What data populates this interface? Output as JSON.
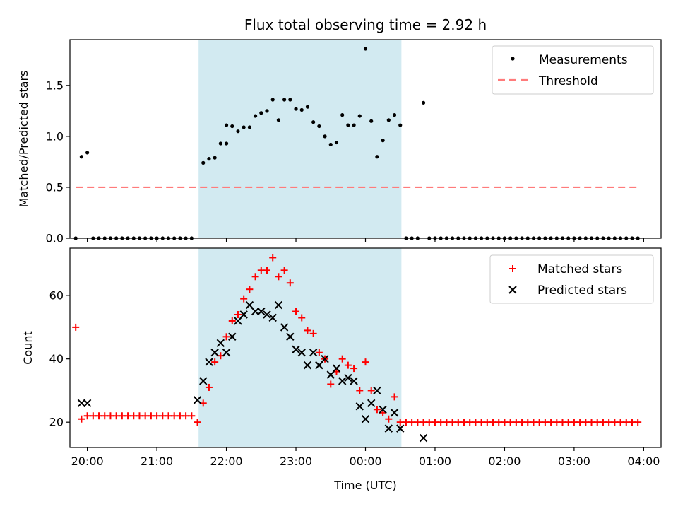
{
  "chart_data": [
    {
      "type": "scatter",
      "title": "Flux total observing time = 2.92 h",
      "xlabel": "",
      "ylabel": "Matched/Predicted stars",
      "xlim": [
        "19:45",
        "04:15"
      ],
      "ylim": [
        0,
        1.95
      ],
      "yticks": [
        {
          "value": 0.0,
          "label": "0.0"
        },
        {
          "value": 0.5,
          "label": "0.5"
        },
        {
          "value": 1.0,
          "label": "1.0"
        },
        {
          "value": 1.5,
          "label": "1.5"
        }
      ],
      "highlight_span": {
        "start": "21:36",
        "end": "00:31",
        "color": "#add8e6"
      },
      "legend": {
        "placement": "top-right",
        "entries": [
          {
            "label": "Measurements",
            "marker": "dot",
            "color": "#000000"
          },
          {
            "label": "Threshold",
            "marker": "dashed-line",
            "color": "#ff7b7b"
          }
        ]
      },
      "threshold": {
        "value": 0.5,
        "from": "19:50",
        "to": "03:55",
        "color": "#ff7b7b"
      },
      "series": [
        {
          "name": "Measurements",
          "color": "#000000",
          "points": [
            [
              "19:50",
              0.0
            ],
            [
              "19:55",
              0.8
            ],
            [
              "20:00",
              0.84
            ],
            [
              "20:05",
              0.0
            ],
            [
              "20:10",
              0.0
            ],
            [
              "20:15",
              0.0
            ],
            [
              "20:20",
              0.0
            ],
            [
              "20:25",
              0.0
            ],
            [
              "20:30",
              0.0
            ],
            [
              "20:35",
              0.0
            ],
            [
              "20:40",
              0.0
            ],
            [
              "20:45",
              0.0
            ],
            [
              "20:50",
              0.0
            ],
            [
              "20:55",
              0.0
            ],
            [
              "21:00",
              0.0
            ],
            [
              "21:05",
              0.0
            ],
            [
              "21:10",
              0.0
            ],
            [
              "21:15",
              0.0
            ],
            [
              "21:20",
              0.0
            ],
            [
              "21:25",
              0.0
            ],
            [
              "21:30",
              0.0
            ],
            [
              "21:40",
              0.74
            ],
            [
              "21:45",
              0.78
            ],
            [
              "21:50",
              0.79
            ],
            [
              "21:55",
              0.93
            ],
            [
              "22:00",
              0.93
            ],
            [
              "22:00",
              1.11
            ],
            [
              "22:05",
              1.1
            ],
            [
              "22:10",
              1.05
            ],
            [
              "22:15",
              1.09
            ],
            [
              "22:20",
              1.09
            ],
            [
              "22:25",
              1.2
            ],
            [
              "22:30",
              1.23
            ],
            [
              "22:35",
              1.25
            ],
            [
              "22:40",
              1.36
            ],
            [
              "22:45",
              1.16
            ],
            [
              "22:50",
              1.36
            ],
            [
              "22:55",
              1.36
            ],
            [
              "23:00",
              1.27
            ],
            [
              "23:05",
              1.26
            ],
            [
              "23:10",
              1.29
            ],
            [
              "23:15",
              1.14
            ],
            [
              "23:20",
              1.1
            ],
            [
              "23:25",
              1.0
            ],
            [
              "23:30",
              0.92
            ],
            [
              "23:35",
              0.94
            ],
            [
              "23:40",
              1.21
            ],
            [
              "23:45",
              1.11
            ],
            [
              "23:50",
              1.11
            ],
            [
              "23:55",
              1.2
            ],
            [
              "00:00",
              1.86
            ],
            [
              "00:05",
              1.15
            ],
            [
              "00:10",
              0.8
            ],
            [
              "00:15",
              0.96
            ],
            [
              "00:20",
              1.16
            ],
            [
              "00:25",
              1.21
            ],
            [
              "00:30",
              1.11
            ],
            [
              "00:35",
              0.0
            ],
            [
              "00:40",
              0.0
            ],
            [
              "00:45",
              0.0
            ],
            [
              "00:50",
              1.33
            ],
            [
              "00:55",
              0.0
            ],
            [
              "01:00",
              0.0
            ],
            [
              "01:05",
              0.0
            ],
            [
              "01:10",
              0.0
            ],
            [
              "01:15",
              0.0
            ],
            [
              "01:20",
              0.0
            ],
            [
              "01:25",
              0.0
            ],
            [
              "01:30",
              0.0
            ],
            [
              "01:35",
              0.0
            ],
            [
              "01:40",
              0.0
            ],
            [
              "01:45",
              0.0
            ],
            [
              "01:50",
              0.0
            ],
            [
              "01:55",
              0.0
            ],
            [
              "02:00",
              0.0
            ],
            [
              "02:05",
              0.0
            ],
            [
              "02:10",
              0.0
            ],
            [
              "02:15",
              0.0
            ],
            [
              "02:20",
              0.0
            ],
            [
              "02:25",
              0.0
            ],
            [
              "02:30",
              0.0
            ],
            [
              "02:35",
              0.0
            ],
            [
              "02:40",
              0.0
            ],
            [
              "02:45",
              0.0
            ],
            [
              "02:50",
              0.0
            ],
            [
              "02:55",
              0.0
            ],
            [
              "03:00",
              0.0
            ],
            [
              "03:05",
              0.0
            ],
            [
              "03:10",
              0.0
            ],
            [
              "03:15",
              0.0
            ],
            [
              "03:20",
              0.0
            ],
            [
              "03:25",
              0.0
            ],
            [
              "03:30",
              0.0
            ],
            [
              "03:35",
              0.0
            ],
            [
              "03:40",
              0.0
            ],
            [
              "03:45",
              0.0
            ],
            [
              "03:50",
              0.0
            ],
            [
              "03:55",
              0.0
            ]
          ]
        }
      ]
    },
    {
      "type": "scatter",
      "title": "",
      "xlabel": "Time (UTC)",
      "ylabel": "Count",
      "xlim": [
        "19:45",
        "04:15"
      ],
      "ylim": [
        12,
        75
      ],
      "yticks": [
        {
          "value": 20,
          "label": "20"
        },
        {
          "value": 40,
          "label": "40"
        },
        {
          "value": 60,
          "label": "60"
        }
      ],
      "xticks": [
        {
          "value": "20:00",
          "label": "20:00"
        },
        {
          "value": "21:00",
          "label": "21:00"
        },
        {
          "value": "22:00",
          "label": "22:00"
        },
        {
          "value": "23:00",
          "label": "23:00"
        },
        {
          "value": "00:00",
          "label": "00:00"
        },
        {
          "value": "01:00",
          "label": "01:00"
        },
        {
          "value": "02:00",
          "label": "02:00"
        },
        {
          "value": "03:00",
          "label": "03:00"
        },
        {
          "value": "04:00",
          "label": "04:00"
        }
      ],
      "highlight_span": {
        "start": "21:36",
        "end": "00:31",
        "color": "#add8e6"
      },
      "legend": {
        "placement": "top-right",
        "entries": [
          {
            "label": "Matched stars",
            "marker": "plus",
            "color": "#ff0000"
          },
          {
            "label": "Predicted stars",
            "marker": "x",
            "color": "#000000"
          }
        ]
      },
      "series": [
        {
          "name": "Matched stars",
          "color": "#ff0000",
          "marker": "plus",
          "points": [
            [
              "19:50",
              50
            ],
            [
              "19:55",
              21
            ],
            [
              "20:00",
              22
            ],
            [
              "20:05",
              22
            ],
            [
              "20:10",
              22
            ],
            [
              "20:15",
              22
            ],
            [
              "20:20",
              22
            ],
            [
              "20:25",
              22
            ],
            [
              "20:30",
              22
            ],
            [
              "20:35",
              22
            ],
            [
              "20:40",
              22
            ],
            [
              "20:45",
              22
            ],
            [
              "20:50",
              22
            ],
            [
              "20:55",
              22
            ],
            [
              "21:00",
              22
            ],
            [
              "21:05",
              22
            ],
            [
              "21:10",
              22
            ],
            [
              "21:15",
              22
            ],
            [
              "21:20",
              22
            ],
            [
              "21:25",
              22
            ],
            [
              "21:30",
              22
            ],
            [
              "21:35",
              20
            ],
            [
              "21:40",
              26
            ],
            [
              "21:45",
              31
            ],
            [
              "21:50",
              39
            ],
            [
              "21:55",
              41
            ],
            [
              "22:00",
              47
            ],
            [
              "22:05",
              52
            ],
            [
              "22:10",
              54
            ],
            [
              "22:15",
              59
            ],
            [
              "22:20",
              62
            ],
            [
              "22:25",
              66
            ],
            [
              "22:30",
              68
            ],
            [
              "22:35",
              68
            ],
            [
              "22:40",
              72
            ],
            [
              "22:45",
              66
            ],
            [
              "22:50",
              68
            ],
            [
              "22:55",
              64
            ],
            [
              "23:00",
              55
            ],
            [
              "23:05",
              53
            ],
            [
              "23:10",
              49
            ],
            [
              "23:15",
              48
            ],
            [
              "23:20",
              42
            ],
            [
              "23:25",
              40
            ],
            [
              "23:30",
              32
            ],
            [
              "23:35",
              36
            ],
            [
              "23:40",
              40
            ],
            [
              "23:45",
              38
            ],
            [
              "23:50",
              37
            ],
            [
              "23:55",
              30
            ],
            [
              "00:00",
              39
            ],
            [
              "00:05",
              30
            ],
            [
              "00:10",
              24
            ],
            [
              "00:15",
              23
            ],
            [
              "00:20",
              21
            ],
            [
              "00:25",
              28
            ],
            [
              "00:30",
              20
            ],
            [
              "00:35",
              20
            ],
            [
              "00:40",
              20
            ],
            [
              "00:45",
              20
            ],
            [
              "00:50",
              20
            ],
            [
              "00:55",
              20
            ],
            [
              "01:00",
              20
            ],
            [
              "01:05",
              20
            ],
            [
              "01:10",
              20
            ],
            [
              "01:15",
              20
            ],
            [
              "01:20",
              20
            ],
            [
              "01:25",
              20
            ],
            [
              "01:30",
              20
            ],
            [
              "01:35",
              20
            ],
            [
              "01:40",
              20
            ],
            [
              "01:45",
              20
            ],
            [
              "01:50",
              20
            ],
            [
              "01:55",
              20
            ],
            [
              "02:00",
              20
            ],
            [
              "02:05",
              20
            ],
            [
              "02:10",
              20
            ],
            [
              "02:15",
              20
            ],
            [
              "02:20",
              20
            ],
            [
              "02:25",
              20
            ],
            [
              "02:30",
              20
            ],
            [
              "02:35",
              20
            ],
            [
              "02:40",
              20
            ],
            [
              "02:45",
              20
            ],
            [
              "02:50",
              20
            ],
            [
              "02:55",
              20
            ],
            [
              "03:00",
              20
            ],
            [
              "03:05",
              20
            ],
            [
              "03:10",
              20
            ],
            [
              "03:15",
              20
            ],
            [
              "03:20",
              20
            ],
            [
              "03:25",
              20
            ],
            [
              "03:30",
              20
            ],
            [
              "03:35",
              20
            ],
            [
              "03:40",
              20
            ],
            [
              "03:45",
              20
            ],
            [
              "03:50",
              20
            ],
            [
              "03:55",
              20
            ]
          ]
        },
        {
          "name": "Predicted stars",
          "color": "#000000",
          "marker": "x",
          "points": [
            [
              "19:55",
              26
            ],
            [
              "20:00",
              26
            ],
            [
              "21:35",
              27
            ],
            [
              "21:40",
              33
            ],
            [
              "21:45",
              39
            ],
            [
              "21:50",
              42
            ],
            [
              "21:55",
              45
            ],
            [
              "22:00",
              42
            ],
            [
              "22:05",
              47
            ],
            [
              "22:10",
              52
            ],
            [
              "22:15",
              54
            ],
            [
              "22:20",
              57
            ],
            [
              "22:25",
              55
            ],
            [
              "22:30",
              55
            ],
            [
              "22:35",
              54
            ],
            [
              "22:40",
              53
            ],
            [
              "22:45",
              57
            ],
            [
              "22:50",
              50
            ],
            [
              "22:55",
              47
            ],
            [
              "23:00",
              43
            ],
            [
              "23:05",
              42
            ],
            [
              "23:10",
              38
            ],
            [
              "23:15",
              42
            ],
            [
              "23:20",
              38
            ],
            [
              "23:25",
              40
            ],
            [
              "23:30",
              35
            ],
            [
              "23:35",
              37
            ],
            [
              "23:40",
              33
            ],
            [
              "23:45",
              34
            ],
            [
              "23:50",
              33
            ],
            [
              "23:55",
              25
            ],
            [
              "00:00",
              21
            ],
            [
              "00:05",
              26
            ],
            [
              "00:10",
              30
            ],
            [
              "00:15",
              24
            ],
            [
              "00:20",
              18
            ],
            [
              "00:25",
              23
            ],
            [
              "00:30",
              18
            ],
            [
              "00:50",
              15
            ]
          ]
        }
      ]
    }
  ]
}
